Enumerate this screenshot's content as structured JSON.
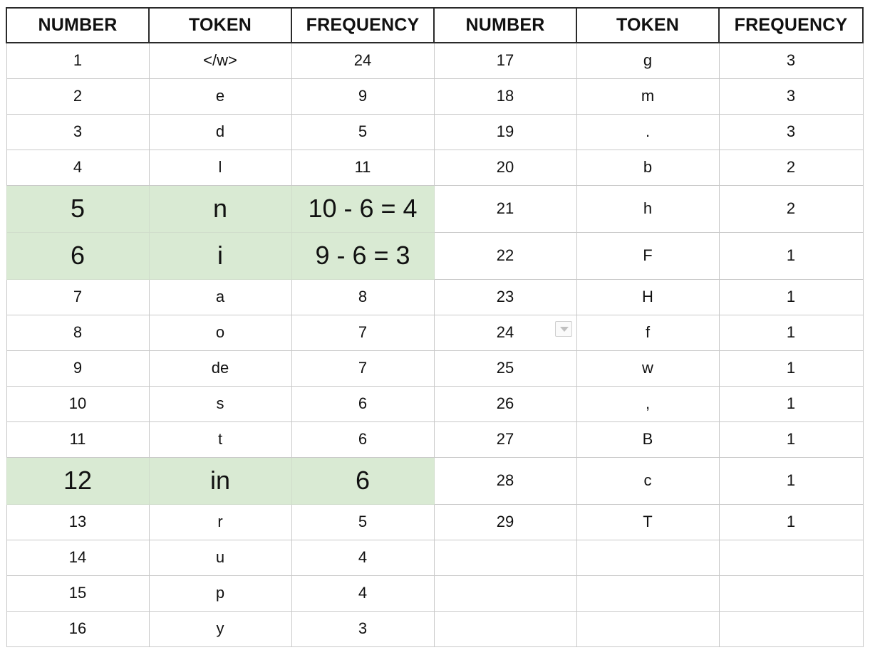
{
  "headers": [
    "NUMBER",
    "TOKEN",
    "FREQUENCY",
    "NUMBER",
    "TOKEN",
    "FREQUENCY"
  ],
  "left_rows": [
    {
      "number": "1",
      "token": "</w>",
      "frequency": "24"
    },
    {
      "number": "2",
      "token": "e",
      "frequency": "9"
    },
    {
      "number": "3",
      "token": "d",
      "frequency": "5"
    },
    {
      "number": "4",
      "token": "l",
      "frequency": "11"
    },
    {
      "number": "5",
      "token": "n",
      "frequency": "10 - 6 = 4",
      "highlighted": true
    },
    {
      "number": "6",
      "token": "i",
      "frequency": "9 - 6 = 3",
      "highlighted": true
    },
    {
      "number": "7",
      "token": "a",
      "frequency": "8"
    },
    {
      "number": "8",
      "token": "o",
      "frequency": "7"
    },
    {
      "number": "9",
      "token": "de",
      "frequency": "7"
    },
    {
      "number": "10",
      "token": "s",
      "frequency": "6"
    },
    {
      "number": "11",
      "token": "t",
      "frequency": "6"
    },
    {
      "number": "12",
      "token": "in",
      "frequency": "6",
      "highlighted": true
    },
    {
      "number": "13",
      "token": "r",
      "frequency": "5"
    },
    {
      "number": "14",
      "token": "u",
      "frequency": "4"
    },
    {
      "number": "15",
      "token": "p",
      "frequency": "4"
    },
    {
      "number": "16",
      "token": "y",
      "frequency": "3"
    }
  ],
  "right_rows": [
    {
      "number": "17",
      "token": "g",
      "frequency": "3"
    },
    {
      "number": "18",
      "token": "m",
      "frequency": "3"
    },
    {
      "number": "19",
      "token": ".",
      "frequency": "3"
    },
    {
      "number": "20",
      "token": "b",
      "frequency": "2"
    },
    {
      "number": "21",
      "token": "h",
      "frequency": "2"
    },
    {
      "number": "22",
      "token": "F",
      "frequency": "1"
    },
    {
      "number": "23",
      "token": "H",
      "frequency": "1"
    },
    {
      "number": "24",
      "token": "f",
      "frequency": "1"
    },
    {
      "number": "25",
      "token": "w",
      "frequency": "1"
    },
    {
      "number": "26",
      "token": ",",
      "frequency": "1"
    },
    {
      "number": "27",
      "token": "B",
      "frequency": "1"
    },
    {
      "number": "28",
      "token": "c",
      "frequency": "1"
    },
    {
      "number": "29",
      "token": "T",
      "frequency": "1"
    },
    {
      "number": "",
      "token": "",
      "frequency": ""
    },
    {
      "number": "",
      "token": "",
      "frequency": ""
    },
    {
      "number": "",
      "token": "",
      "frequency": ""
    }
  ],
  "colors": {
    "highlight": "#d9ead3",
    "grid_line": "#c9c9c9",
    "header_border": "#2a2a2a"
  },
  "icons": {
    "filter_dropdown": "chevron-down-icon"
  }
}
